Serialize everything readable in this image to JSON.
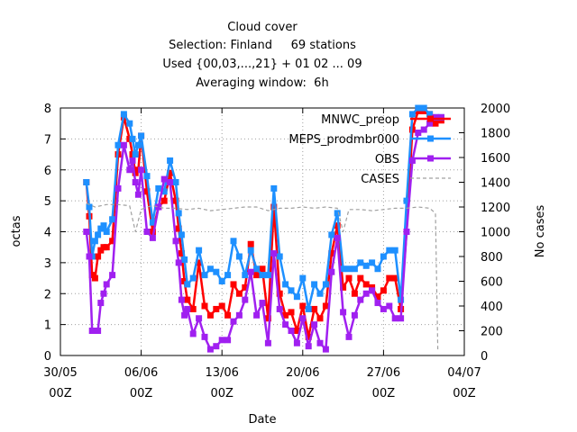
{
  "chart_data": {
    "type": "line",
    "title_lines": [
      "Cloud cover",
      "Selection: Finland     69 stations",
      "Used {00,03,...,21} + 01 02 ... 09",
      "Averaging window:  6h"
    ],
    "xlabel": "Date",
    "ylabel": "octas",
    "y2label": "No cases",
    "xlim": [
      0,
      35
    ],
    "ylim": [
      0,
      8
    ],
    "y2lim": [
      0,
      2000
    ],
    "x_ticks": [
      {
        "x": 0,
        "top": "30/05",
        "bottom": "00Z"
      },
      {
        "x": 7,
        "top": "06/06",
        "bottom": "00Z"
      },
      {
        "x": 14,
        "top": "13/06",
        "bottom": "00Z"
      },
      {
        "x": 21,
        "top": "20/06",
        "bottom": "00Z"
      },
      {
        "x": 28,
        "top": "27/06",
        "bottom": "00Z"
      },
      {
        "x": 35,
        "top": "04/07",
        "bottom": "00Z"
      }
    ],
    "y_ticks": [
      0,
      1,
      2,
      3,
      4,
      5,
      6,
      7,
      8
    ],
    "y2_ticks": [
      0,
      200,
      400,
      600,
      800,
      1000,
      1200,
      1400,
      1600,
      1800,
      2000
    ],
    "x_unit": "days since 30/05 00Z",
    "series": [
      {
        "name": "MNWC_preop",
        "color": "#ff0000",
        "marker": "square",
        "x": [
          2.25,
          2.5,
          2.75,
          3.0,
          3.25,
          3.5,
          3.75,
          4.0,
          4.5,
          5.0,
          5.5,
          6.0,
          6.25,
          6.5,
          6.75,
          7.0,
          7.5,
          8.0,
          8.5,
          9.0,
          9.5,
          10.0,
          10.25,
          10.5,
          10.75,
          11.0,
          11.5,
          12.0,
          12.5,
          13.0,
          13.5,
          14.0,
          14.5,
          15.0,
          15.5,
          16.0,
          16.5,
          17.0,
          17.5,
          18.0,
          18.5,
          19.0,
          19.5,
          20.0,
          20.5,
          21.0,
          21.5,
          22.0,
          22.5,
          23.0,
          23.5,
          24.0,
          24.5,
          25.0,
          25.5,
          26.0,
          26.5,
          27.0,
          27.5,
          28.0,
          28.5,
          29.0,
          29.5,
          30.0,
          30.5,
          31.0,
          31.5,
          32.0,
          32.5,
          33.0
        ],
        "values": [
          5.6,
          4.5,
          2.6,
          2.5,
          3.2,
          3.4,
          3.5,
          3.5,
          3.7,
          6.5,
          7.7,
          7.0,
          6.5,
          5.9,
          6.0,
          7.1,
          5.3,
          4.0,
          4.8,
          5.0,
          5.9,
          5.0,
          4.1,
          3.3,
          2.4,
          1.8,
          1.5,
          3.0,
          1.6,
          1.3,
          1.5,
          1.6,
          1.3,
          2.3,
          2.0,
          2.2,
          3.6,
          2.6,
          2.8,
          1.2,
          4.8,
          2.0,
          1.3,
          1.4,
          0.8,
          1.6,
          0.6,
          1.5,
          1.2,
          1.6,
          3.3,
          4.2,
          2.2,
          2.5,
          2.0,
          2.5,
          2.3,
          2.2,
          1.9,
          2.1,
          2.5,
          2.5,
          1.5,
          4.0,
          7.3,
          7.9,
          7.9,
          7.8,
          7.5,
          7.6
        ]
      },
      {
        "name": "MEPS_prodmbr000",
        "color": "#1e90ff",
        "marker": "square",
        "x": [
          2.25,
          2.5,
          2.75,
          3.0,
          3.25,
          3.5,
          3.75,
          4.0,
          4.5,
          5.0,
          5.5,
          6.0,
          6.25,
          6.5,
          6.75,
          7.0,
          7.5,
          8.0,
          8.5,
          9.0,
          9.5,
          10.0,
          10.25,
          10.5,
          10.75,
          11.0,
          11.5,
          12.0,
          12.5,
          13.0,
          13.5,
          14.0,
          14.5,
          15.0,
          15.5,
          16.0,
          16.5,
          17.0,
          17.5,
          18.0,
          18.5,
          19.0,
          19.5,
          20.0,
          20.5,
          21.0,
          21.5,
          22.0,
          22.5,
          23.0,
          23.5,
          24.0,
          24.5,
          25.0,
          25.5,
          26.0,
          26.5,
          27.0,
          27.5,
          28.0,
          28.5,
          29.0,
          29.5,
          30.0,
          30.5,
          31.0,
          31.5,
          32.0,
          32.5,
          33.0
        ],
        "values": [
          5.6,
          4.8,
          3.2,
          3.7,
          3.9,
          4.1,
          4.2,
          4.0,
          4.4,
          6.8,
          7.8,
          7.5,
          7.0,
          6.5,
          6.8,
          7.1,
          5.8,
          4.3,
          5.4,
          5.3,
          6.3,
          5.6,
          4.6,
          3.9,
          3.1,
          2.3,
          2.5,
          3.4,
          2.6,
          2.8,
          2.7,
          2.4,
          2.6,
          3.7,
          3.2,
          2.6,
          3.4,
          2.8,
          2.6,
          2.6,
          5.4,
          3.2,
          2.3,
          2.1,
          1.9,
          2.5,
          1.5,
          2.3,
          2.0,
          2.3,
          3.9,
          4.6,
          2.8,
          2.8,
          2.8,
          3.0,
          2.9,
          3.0,
          2.8,
          3.2,
          3.4,
          3.4,
          1.8,
          5.0,
          7.8,
          8.0,
          8.0,
          7.8,
          7.7,
          7.7
        ]
      },
      {
        "name": "OBS",
        "color": "#a020f0",
        "marker": "square",
        "x": [
          2.25,
          2.5,
          2.75,
          3.0,
          3.25,
          3.5,
          3.75,
          4.0,
          4.5,
          5.0,
          5.5,
          6.0,
          6.25,
          6.5,
          6.75,
          7.0,
          7.5,
          8.0,
          8.5,
          9.0,
          9.5,
          10.0,
          10.25,
          10.5,
          10.75,
          11.0,
          11.5,
          12.0,
          12.5,
          13.0,
          13.5,
          14.0,
          14.5,
          15.0,
          15.5,
          16.0,
          16.5,
          17.0,
          17.5,
          18.0,
          18.5,
          19.0,
          19.5,
          20.0,
          20.5,
          21.0,
          21.5,
          22.0,
          22.5,
          23.0,
          23.5,
          24.0,
          24.5,
          25.0,
          25.5,
          26.0,
          26.5,
          27.0,
          27.5,
          28.0,
          28.5,
          29.0,
          29.5,
          30.0,
          30.5,
          31.0,
          31.5,
          32.0,
          32.5,
          33.0
        ],
        "values": [
          4.0,
          3.2,
          0.8,
          0.8,
          0.8,
          1.7,
          2.0,
          2.3,
          2.6,
          5.4,
          6.8,
          6.0,
          6.3,
          5.6,
          5.2,
          6.0,
          4.0,
          3.8,
          4.8,
          5.7,
          5.6,
          3.7,
          3.0,
          1.8,
          1.3,
          1.5,
          0.7,
          1.2,
          0.6,
          0.2,
          0.3,
          0.5,
          0.5,
          1.1,
          1.3,
          1.8,
          2.7,
          1.3,
          1.7,
          0.4,
          3.3,
          1.5,
          1.0,
          0.8,
          0.4,
          1.2,
          0.3,
          1.0,
          0.4,
          0.2,
          2.7,
          3.8,
          1.4,
          0.6,
          1.3,
          1.8,
          2.0,
          2.1,
          1.7,
          1.5,
          1.6,
          1.2,
          1.2,
          4.0,
          6.3,
          7.2,
          7.3,
          7.5,
          7.7,
          7.7
        ]
      },
      {
        "name": "CASES",
        "color": "#a0a0a0",
        "dashed": true,
        "axis": "y2",
        "x": [
          2.25,
          3.0,
          4.0,
          5.0,
          6.0,
          6.5,
          7.0,
          7.5,
          8.0,
          8.5,
          9.0,
          10.0,
          11.0,
          12.0,
          13.0,
          14.0,
          15.0,
          16.0,
          17.0,
          18.0,
          19.0,
          20.0,
          21.0,
          22.0,
          23.0,
          24.0,
          24.5,
          25.0,
          26.0,
          27.0,
          28.0,
          29.0,
          30.0,
          31.0,
          32.0,
          32.5,
          32.6,
          32.7
        ],
        "values": [
          1230,
          1200,
          1220,
          1220,
          1210,
          1000,
          1180,
          1200,
          1210,
          1200,
          1190,
          1190,
          1180,
          1190,
          1170,
          1180,
          1190,
          1200,
          1200,
          1170,
          1190,
          1190,
          1200,
          1190,
          1200,
          1190,
          1000,
          1180,
          1180,
          1170,
          1180,
          1190,
          1190,
          1200,
          1190,
          1150,
          600,
          50
        ]
      }
    ],
    "legend": {
      "position": "top-right",
      "entries": [
        "MNWC_preop",
        "MEPS_prodmbr000",
        "OBS",
        "CASES"
      ]
    },
    "grid": true
  }
}
